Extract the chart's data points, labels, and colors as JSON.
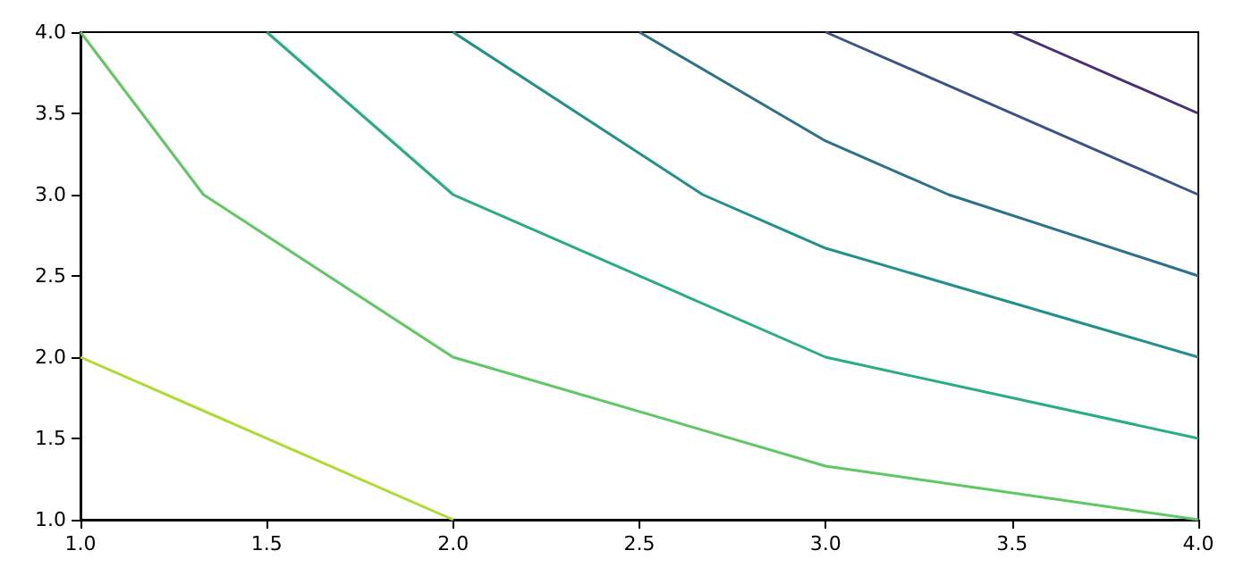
{
  "chart_data": {
    "type": "line",
    "xlim": [
      1,
      4
    ],
    "ylim": [
      1,
      4
    ],
    "xticks": [
      {
        "value": 1,
        "label": "1.0"
      },
      {
        "value": 1.5,
        "label": "1.5"
      },
      {
        "value": 2,
        "label": "2.0"
      },
      {
        "value": 2.5,
        "label": "2.5"
      },
      {
        "value": 3,
        "label": "3.0"
      },
      {
        "value": 3.5,
        "label": "3.5"
      },
      {
        "value": 4,
        "label": "4.0"
      }
    ],
    "yticks": [
      {
        "value": 1,
        "label": "1.0"
      },
      {
        "value": 1.5,
        "label": "1.5"
      },
      {
        "value": 2,
        "label": "2.0"
      },
      {
        "value": 2.5,
        "label": "2.5"
      },
      {
        "value": 3,
        "label": "3.0"
      },
      {
        "value": 3.5,
        "label": "3.5"
      },
      {
        "value": 4,
        "label": "4.0"
      }
    ],
    "grid": false,
    "marker": "none",
    "line_style": "solid",
    "series": [
      {
        "color": "#addc30",
        "x": [
          1,
          2
        ],
        "values": [
          2,
          1
        ]
      },
      {
        "color": "#5ec962",
        "x": [
          1,
          1.33,
          2,
          3,
          4
        ],
        "values": [
          4,
          3,
          2,
          1.33,
          1
        ]
      },
      {
        "color": "#28ae80",
        "x": [
          1.5,
          2,
          3,
          4
        ],
        "values": [
          4,
          3,
          2,
          1.5
        ]
      },
      {
        "color": "#21918c",
        "x": [
          2,
          2.67,
          3,
          4
        ],
        "values": [
          4,
          3,
          2.67,
          2
        ]
      },
      {
        "color": "#2c728e",
        "x": [
          2.5,
          3,
          3.33,
          4
        ],
        "values": [
          4,
          3.33,
          3,
          2.5
        ]
      },
      {
        "color": "#3b528b",
        "x": [
          3,
          4
        ],
        "values": [
          4,
          3
        ]
      },
      {
        "color": "#472d7b",
        "x": [
          3.5,
          4
        ],
        "values": [
          4,
          3.5
        ]
      }
    ]
  }
}
